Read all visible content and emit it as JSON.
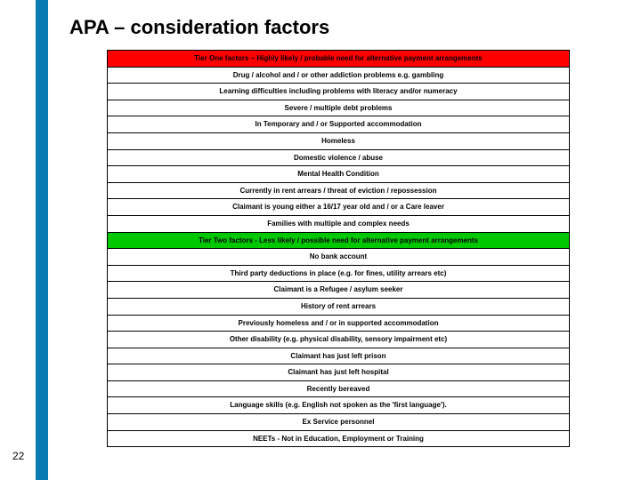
{
  "title": "APA – consideration factors",
  "page_number": "22",
  "accent_color": "#0a7ab3",
  "tier1_bg": "#ff0000",
  "tier2_bg": "#00c800",
  "rows": [
    {
      "text": "Tier One factors – Highly likely / probable need for alternative payment arrangements",
      "cls": "hdr1"
    },
    {
      "text": "Drug / alcohol and / or other addiction problems e.g. gambling",
      "cls": ""
    },
    {
      "text": "Learning difficulties including problems with literacy and/or numeracy",
      "cls": ""
    },
    {
      "text": "Severe / multiple debt problems",
      "cls": ""
    },
    {
      "text": "In Temporary and / or Supported accommodation",
      "cls": ""
    },
    {
      "text": "Homeless",
      "cls": ""
    },
    {
      "text": "Domestic violence / abuse",
      "cls": ""
    },
    {
      "text": "Mental Health Condition",
      "cls": ""
    },
    {
      "text": "Currently in rent arrears / threat of eviction / repossession",
      "cls": ""
    },
    {
      "text": "Claimant is young either a 16/17 year old and / or a Care leaver",
      "cls": ""
    },
    {
      "text": "Families with multiple and complex needs",
      "cls": ""
    },
    {
      "text": "Tier Two factors -  Less likely / possible need for alternative payment arrangements",
      "cls": "hdr2"
    },
    {
      "text": "No bank account",
      "cls": ""
    },
    {
      "text": "Third party deductions in place (e.g. for fines, utility arrears etc)",
      "cls": ""
    },
    {
      "text": "Claimant is a Refugee / asylum seeker",
      "cls": ""
    },
    {
      "text": "History of rent arrears",
      "cls": ""
    },
    {
      "text": "Previously homeless and / or in supported accommodation",
      "cls": ""
    },
    {
      "text": "Other disability (e.g. physical disability, sensory impairment etc)",
      "cls": ""
    },
    {
      "text": "Claimant has just left prison",
      "cls": ""
    },
    {
      "text": "Claimant has just left hospital",
      "cls": ""
    },
    {
      "text": "Recently bereaved",
      "cls": ""
    },
    {
      "text": "Language skills (e.g. English not spoken as the 'first language').",
      "cls": ""
    },
    {
      "text": "Ex Service personnel",
      "cls": ""
    },
    {
      "text": "NEETs - Not in Education, Employment or Training",
      "cls": ""
    }
  ]
}
